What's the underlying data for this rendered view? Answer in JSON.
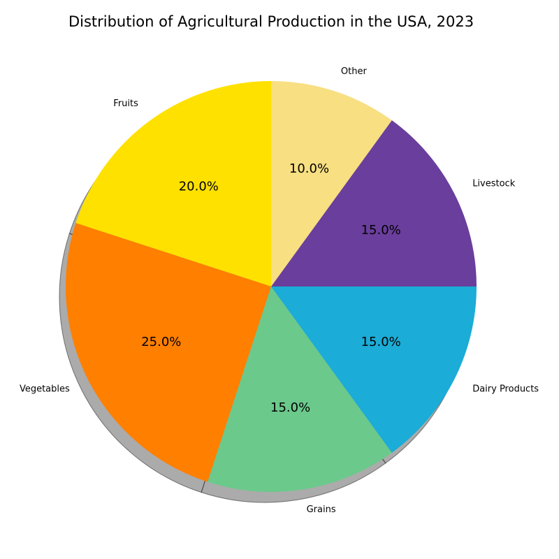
{
  "chart_data": {
    "type": "pie",
    "title": "Distribution of Agricultural Production in the USA, 2023",
    "start_angle_deg": 90,
    "direction": "counterclockwise",
    "shadow": true,
    "slices": [
      {
        "label": "Fruits",
        "value": 20,
        "pct_label": "20.0%",
        "color": "#FFE100"
      },
      {
        "label": "Vegetables",
        "value": 25,
        "pct_label": "25.0%",
        "color": "#FF7F00"
      },
      {
        "label": "Grains",
        "value": 15,
        "pct_label": "15.0%",
        "color": "#6BC98B"
      },
      {
        "label": "Dairy Products",
        "value": 15,
        "pct_label": "15.0%",
        "color": "#1BACD7"
      },
      {
        "label": "Livestock",
        "value": 15,
        "pct_label": "15.0%",
        "color": "#6A3E9C"
      },
      {
        "label": "Other",
        "value": 10,
        "pct_label": "10.0%",
        "color": "#F8DF82"
      }
    ]
  }
}
